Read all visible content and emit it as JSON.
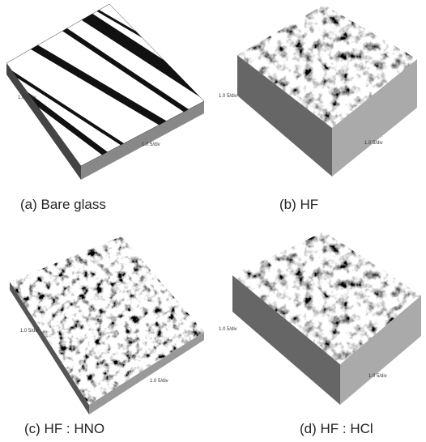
{
  "panels": [
    {
      "caption": "(a) Bare glass",
      "x_label": "1.0 5/div",
      "y_label": "1.0 5/div"
    },
    {
      "caption": "(b) HF",
      "x_label": "1.0 5/div",
      "y_label": "1.0 5/div"
    },
    {
      "caption": "(c) HF : HNO",
      "x_label": "1.0 5/div",
      "y_label": "1.0 5/div"
    },
    {
      "caption": "(d) HF : HCl",
      "x_label": "1.0 5/div",
      "y_label": "1.0 5/div"
    }
  ]
}
